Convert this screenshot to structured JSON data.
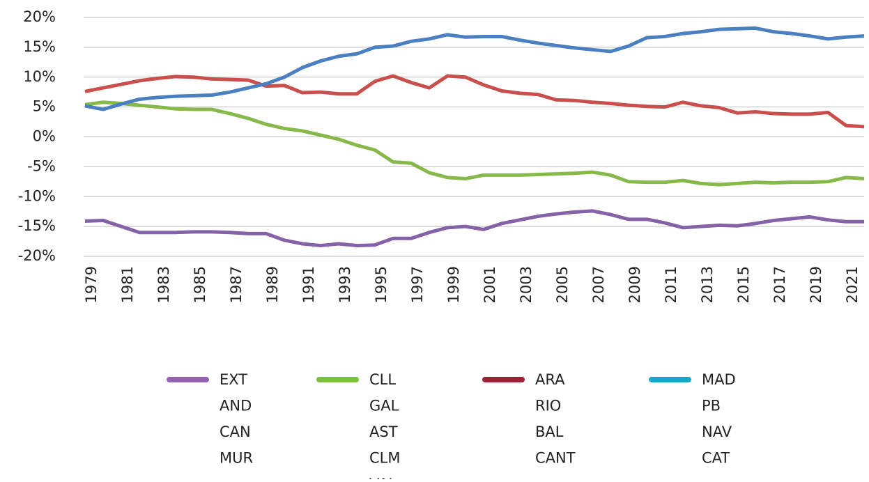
{
  "chart_data": {
    "type": "line",
    "x": [
      1979,
      1980,
      1981,
      1982,
      1983,
      1984,
      1985,
      1986,
      1987,
      1988,
      1989,
      1990,
      1991,
      1992,
      1993,
      1994,
      1995,
      1996,
      1997,
      1998,
      1999,
      2000,
      2001,
      2002,
      2003,
      2004,
      2005,
      2006,
      2007,
      2008,
      2009,
      2010,
      2011,
      2012,
      2013,
      2014,
      2015,
      2016,
      2017,
      2018,
      2019,
      2020,
      2021,
      2022
    ],
    "xlim": [
      1979,
      2022
    ],
    "xticks": [
      1979,
      1981,
      1983,
      1985,
      1987,
      1989,
      1991,
      1993,
      1995,
      1997,
      1999,
      2001,
      2003,
      2005,
      2007,
      2009,
      2011,
      2013,
      2015,
      2017,
      2019,
      2021
    ],
    "ylim": [
      -20,
      20
    ],
    "yticks": [
      {
        "value": -20,
        "label": "-20%"
      },
      {
        "value": -15,
        "label": "-15%"
      },
      {
        "value": -10,
        "label": "-10%"
      },
      {
        "value": -5,
        "label": "-5%"
      },
      {
        "value": 0,
        "label": "0%"
      },
      {
        "value": 5,
        "label": "5%"
      },
      {
        "value": 10,
        "label": "10%"
      },
      {
        "value": 15,
        "label": "15%"
      },
      {
        "value": 20,
        "label": "20%"
      }
    ],
    "grid": true,
    "series": [
      {
        "name": [
          "EXT",
          "AND",
          "CAN",
          "MUR"
        ],
        "color": "#8561a8",
        "legend_color": "#9460b0",
        "values": [
          -14.1,
          -14.0,
          -15.0,
          -16.0,
          -16.0,
          -16.0,
          -15.9,
          -15.9,
          -16.0,
          -16.2,
          -16.2,
          -17.3,
          -17.9,
          -18.2,
          -17.9,
          -18.2,
          -18.1,
          -17.0,
          -17.0,
          -16.0,
          -15.2,
          -15.0,
          -15.5,
          -14.5,
          -13.9,
          -13.3,
          -12.9,
          -12.6,
          -12.4,
          -13.0,
          -13.8,
          -13.8,
          -14.4,
          -15.2,
          -15.0,
          -14.8,
          -14.9,
          -14.5,
          -14.0,
          -13.7,
          -13.4,
          -13.9,
          -14.2,
          -14.2
        ]
      },
      {
        "name": [
          "CLL",
          "GAL",
          "AST",
          "CLM",
          "VAL"
        ],
        "color": "#86b94a",
        "legend_color": "#7bbf44",
        "values": [
          5.4,
          5.8,
          5.6,
          5.3,
          5.0,
          4.7,
          4.6,
          4.6,
          3.9,
          3.1,
          2.1,
          1.4,
          1.0,
          0.3,
          -0.4,
          -1.4,
          -2.2,
          -4.2,
          -4.4,
          -6.0,
          -6.8,
          -7.0,
          -6.4,
          -6.4,
          -6.4,
          -6.3,
          -6.2,
          -6.1,
          -5.9,
          -6.4,
          -7.5,
          -7.6,
          -7.6,
          -7.3,
          -7.8,
          -8.0,
          -7.8,
          -7.6,
          -7.7,
          -7.6,
          -7.6,
          -7.5,
          -6.8,
          -7.0
        ]
      },
      {
        "name": [
          "ARA",
          "RIO",
          "BAL",
          "CANT"
        ],
        "color": "#c94f4c",
        "legend_color": "#9b2235",
        "values": [
          7.6,
          8.2,
          8.8,
          9.4,
          9.8,
          10.1,
          10.0,
          9.7,
          9.6,
          9.5,
          8.5,
          8.6,
          7.4,
          7.5,
          7.2,
          7.2,
          9.3,
          10.2,
          9.1,
          8.2,
          10.2,
          10.0,
          8.7,
          7.7,
          7.3,
          7.1,
          6.2,
          6.1,
          5.8,
          5.6,
          5.3,
          5.1,
          5.0,
          5.8,
          5.2,
          4.9,
          4.0,
          4.2,
          3.9,
          3.8,
          3.8,
          4.1,
          1.9,
          1.7
        ]
      },
      {
        "name": [
          "MAD",
          "PB",
          "NAV",
          "CAT"
        ],
        "color": "#4a7fc1",
        "legend_color": "#14a8c8",
        "values": [
          5.2,
          4.6,
          5.5,
          6.3,
          6.6,
          6.8,
          6.9,
          7.0,
          7.5,
          8.2,
          8.9,
          10.0,
          11.6,
          12.7,
          13.5,
          13.9,
          15.0,
          15.2,
          16.0,
          16.4,
          17.1,
          16.7,
          16.8,
          16.8,
          16.2,
          15.7,
          15.3,
          14.9,
          14.6,
          14.3,
          15.2,
          16.6,
          16.8,
          17.3,
          17.6,
          18.0,
          18.1,
          18.2,
          17.6,
          17.3,
          16.9,
          16.4,
          16.7,
          16.9
        ]
      }
    ]
  }
}
